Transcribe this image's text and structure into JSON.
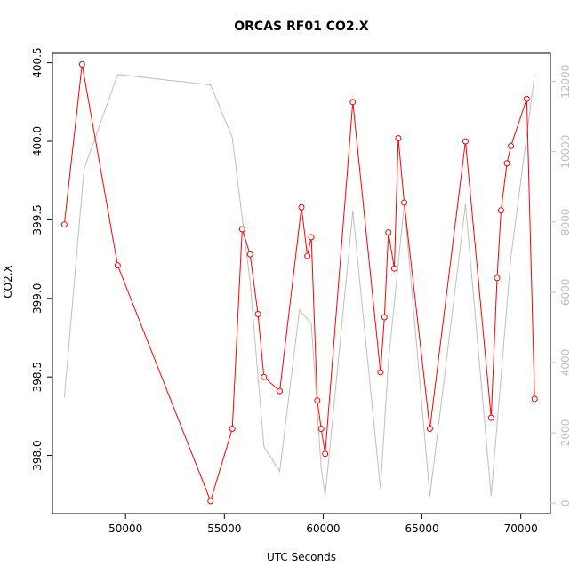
{
  "chart_data": {
    "type": "line",
    "title": "ORCAS RF01 CO2.X",
    "xlabel": "UTC Seconds",
    "ylabel": "CO2.X",
    "y2label": "",
    "xlim": [
      46300,
      71500
    ],
    "ylim": [
      397.63,
      400.56
    ],
    "y2lim": [
      -300,
      12800
    ],
    "x_ticks": [
      50000,
      55000,
      60000,
      65000,
      70000
    ],
    "x_tick_labels": [
      "50000",
      "55000",
      "60000",
      "65000",
      "70000"
    ],
    "y_ticks": [
      398.0,
      398.5,
      399.0,
      399.5,
      400.0,
      400.5
    ],
    "y_tick_labels": [
      "398.0",
      "398.5",
      "399.0",
      "399.5",
      "400.0",
      "400.5"
    ],
    "y2_ticks": [
      0,
      2000,
      4000,
      6000,
      8000,
      10000,
      12000
    ],
    "y2_tick_labels": [
      "0",
      "2000",
      "4000",
      "6000",
      "8000",
      "10000",
      "12000"
    ],
    "grid": false,
    "series": [
      {
        "color": "#ff0000",
        "marker": "open-circle",
        "axis": "left",
        "x": [
          46900,
          47800,
          49600,
          54300,
          55400,
          55900,
          56300,
          56700,
          57000,
          57800,
          58900,
          59200,
          59400,
          59700,
          59900,
          60100,
          61500,
          62900,
          63100,
          63300,
          63600,
          63800,
          64100,
          65400,
          67200,
          68500,
          68800,
          69000,
          69300,
          69500,
          70300,
          70700
        ],
        "y": [
          399.47,
          400.49,
          399.21,
          397.71,
          398.17,
          399.44,
          399.28,
          398.9,
          398.5,
          398.41,
          399.58,
          399.27,
          399.39,
          398.35,
          398.17,
          398.01,
          400.25,
          398.53,
          398.88,
          399.42,
          399.19,
          400.02,
          399.61,
          398.17,
          400.0,
          398.24,
          399.13,
          399.56,
          399.86,
          399.97,
          400.27,
          398.36
        ]
      },
      {
        "color": "#bebebe",
        "marker": "none",
        "axis": "right",
        "x": [
          46900,
          47900,
          49600,
          54300,
          55400,
          56300,
          57000,
          57800,
          58800,
          59400,
          59900,
          60100,
          61500,
          62900,
          63300,
          64100,
          65400,
          67200,
          68500,
          69500,
          70700
        ],
        "y": [
          3000,
          9500,
          12200,
          11900,
          10400,
          6300,
          1600,
          900,
          5500,
          5100,
          1000,
          200,
          8300,
          400,
          4000,
          8500,
          200,
          8500,
          200,
          7000,
          12200
        ]
      }
    ]
  }
}
